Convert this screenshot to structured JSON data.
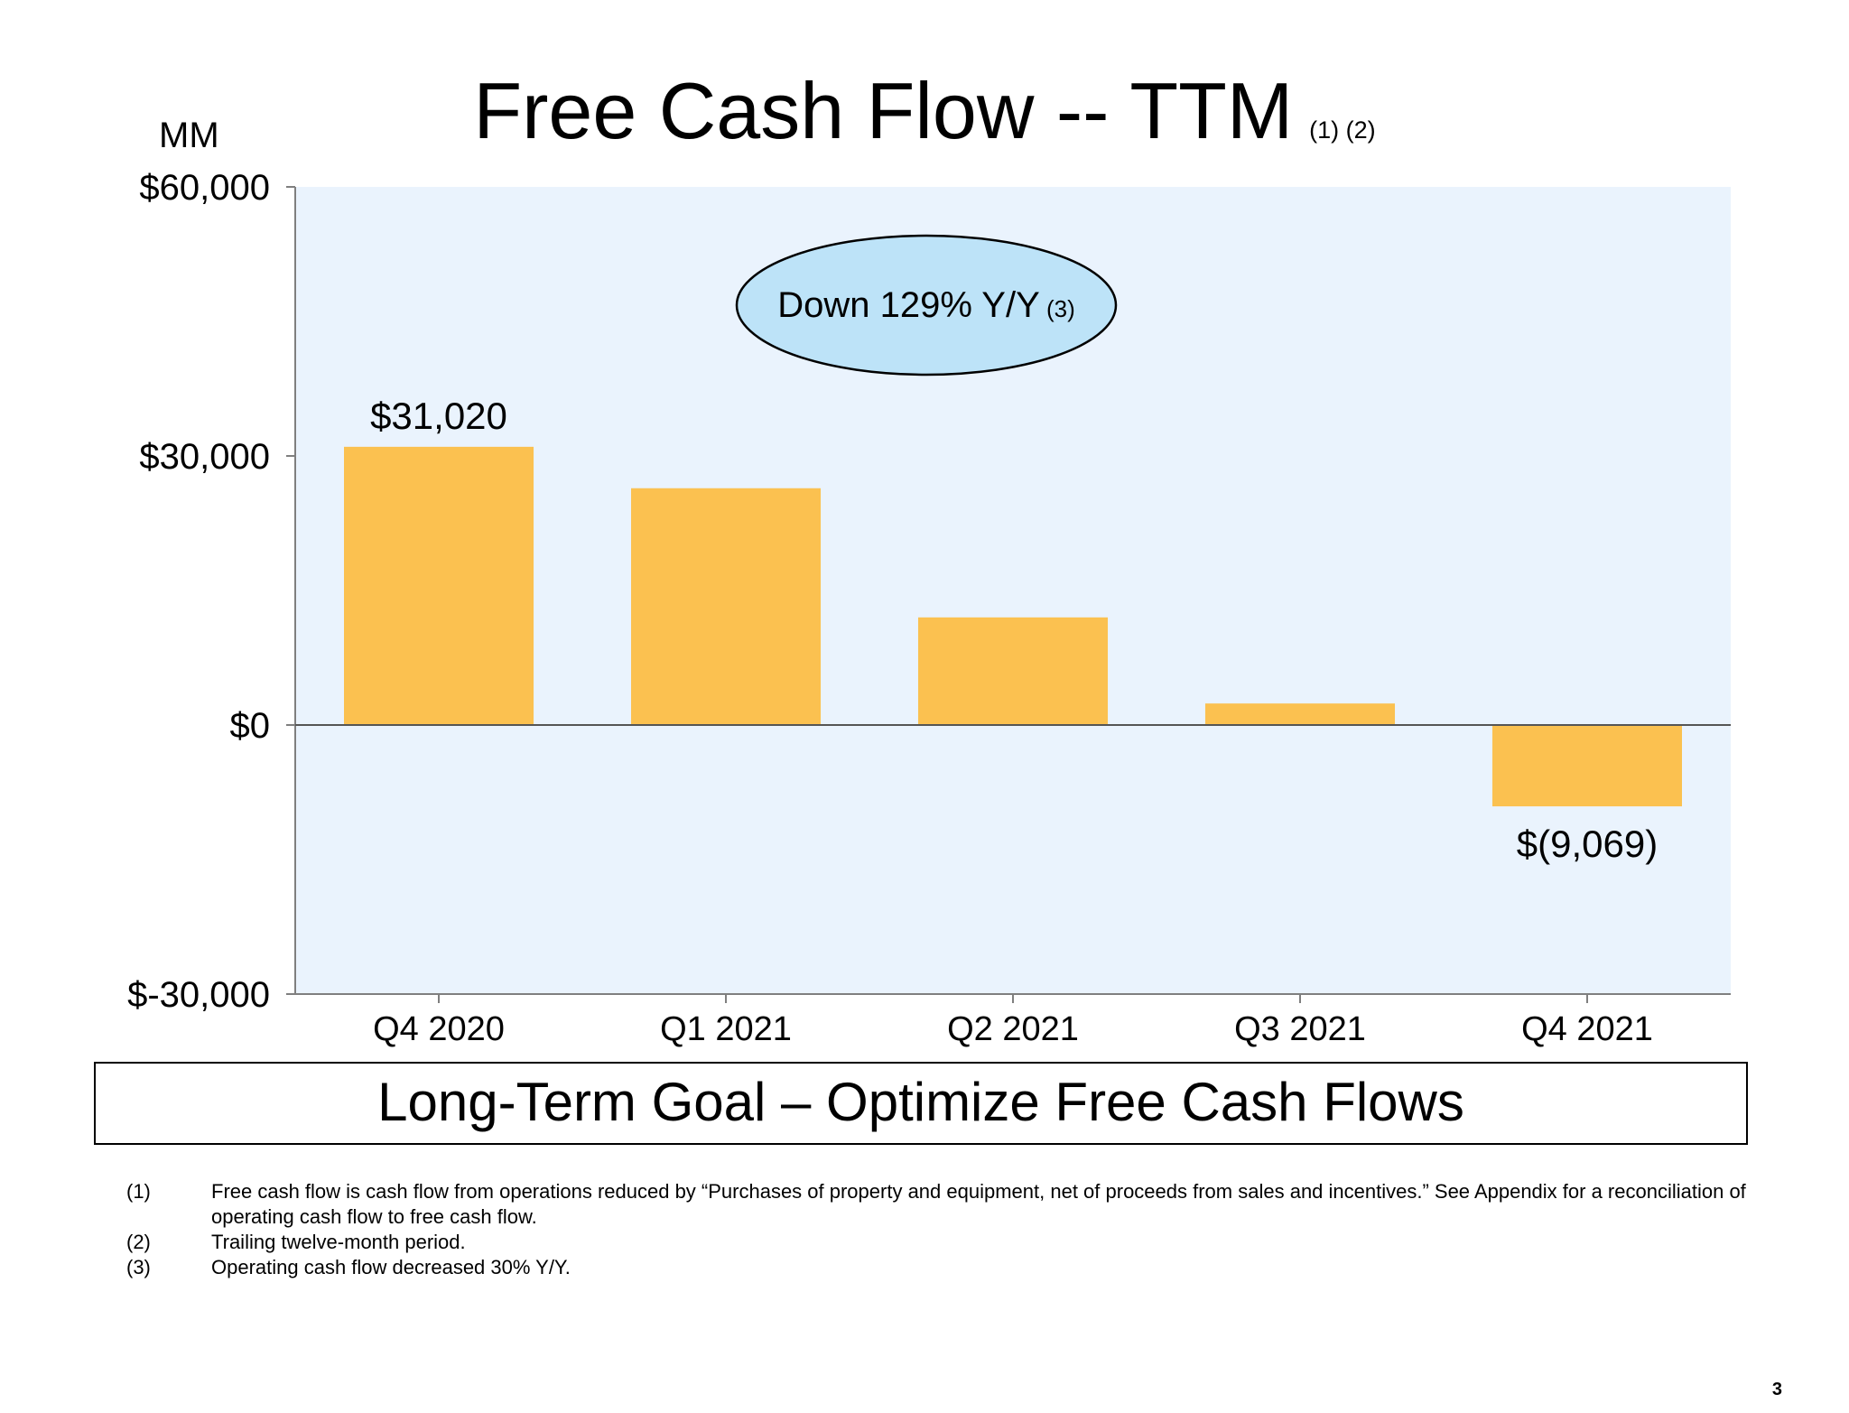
{
  "slide": {
    "title": "Free Cash Flow -- TTM",
    "title_notes": "(1) (2)",
    "unit_label": "MM",
    "goal_text": "Long-Term Goal – Optimize Free Cash Flows",
    "page_number": "3",
    "footnotes": [
      {
        "mark": "(1)",
        "text": "Free cash flow is cash flow from operations reduced by “Purchases of property and equipment, net of proceeds from sales and incentives.” See Appendix for a reconciliation of operating cash flow to free cash flow."
      },
      {
        "mark": "(2)",
        "text": "Trailing twelve-month period."
      },
      {
        "mark": "(3)",
        "text": "Operating cash flow decreased 30% Y/Y."
      }
    ]
  },
  "chart_data": {
    "type": "bar",
    "categories": [
      "Q4 2020",
      "Q1 2021",
      "Q2 2021",
      "Q3 2021",
      "Q4 2021"
    ],
    "values": [
      31020,
      26400,
      12000,
      2400,
      -9069
    ],
    "data_labels": [
      "$31,020",
      "",
      "",
      "",
      "$(9,069)"
    ],
    "y_ticks": [
      60000,
      30000,
      0,
      -30000
    ],
    "y_tick_labels": [
      "$60,000",
      "$30,000",
      "$0",
      "$-30,000"
    ],
    "ylim": [
      -30000,
      60000
    ],
    "grid": false,
    "legend": "none",
    "annotation": {
      "text": "Down 129% Y/Y",
      "note": "(3)"
    },
    "colors": {
      "bar": "#FBC150",
      "plot_background": "#EAF3FD",
      "callout_fill": "#BDE3F8",
      "axis": "#7f7f7f",
      "zero_line": "#555555"
    }
  }
}
